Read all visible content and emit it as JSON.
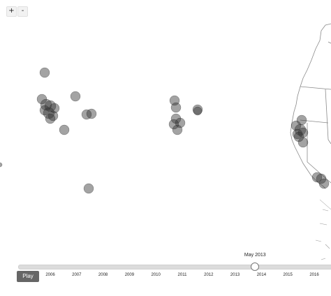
{
  "controls": {
    "zoom_in": "+",
    "zoom_out": "-",
    "play_label": "Play",
    "current_label": "May 2013",
    "current_fraction": 0.754
  },
  "timeline": {
    "years": [
      "2006",
      "2007",
      "2008",
      "2009",
      "2010",
      "2011",
      "2012",
      "2013",
      "2014",
      "2015",
      "2016"
    ]
  },
  "colors": {
    "marker": "#333333",
    "coast": "#8a8a8a"
  }
}
